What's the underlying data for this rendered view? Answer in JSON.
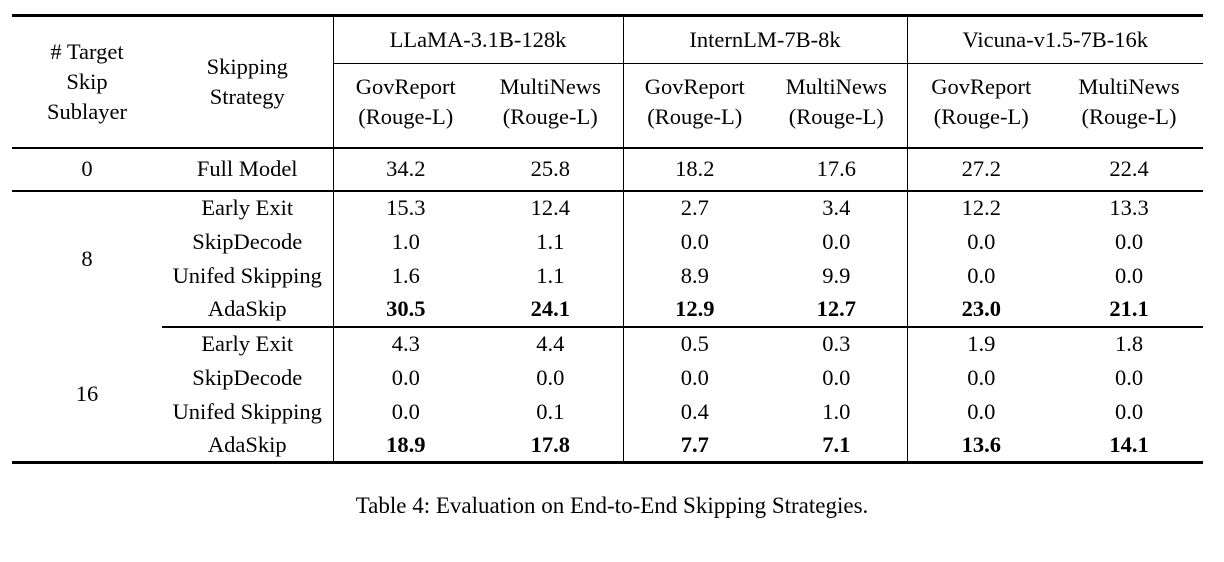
{
  "colors": {
    "text": "#000000",
    "background": "#ffffff",
    "rule": "#000000"
  },
  "table": {
    "header": {
      "col1": "# Target\nSkip\nSublayer",
      "col2": "Skipping\nStrategy",
      "groups": [
        {
          "model": "LLaMA-3.1B-128k",
          "subcols": [
            "GovReport\n(Rouge-L)",
            "MultiNews\n(Rouge-L)"
          ]
        },
        {
          "model": "InternLM-7B-8k",
          "subcols": [
            "GovReport\n(Rouge-L)",
            "MultiNews\n(Rouge-L)"
          ]
        },
        {
          "model": "Vicuna-v1.5-7B-16k",
          "subcols": [
            "GovReport\n(Rouge-L)",
            "MultiNews\n(Rouge-L)"
          ]
        }
      ]
    },
    "sections": [
      {
        "skip": "0",
        "rows": [
          {
            "strategy": "Full Model",
            "values": [
              "34.2",
              "25.8",
              "18.2",
              "17.6",
              "27.2",
              "22.4"
            ]
          }
        ]
      },
      {
        "skip": "8",
        "rows": [
          {
            "strategy": "Early Exit",
            "values": [
              "15.3",
              "12.4",
              "2.7",
              "3.4",
              "12.2",
              "13.3"
            ]
          },
          {
            "strategy": "SkipDecode",
            "values": [
              "1.0",
              "1.1",
              "0.0",
              "0.0",
              "0.0",
              "0.0"
            ]
          },
          {
            "strategy": "Unifed Skipping",
            "values": [
              "1.6",
              "1.1",
              "8.9",
              "9.9",
              "0.0",
              "0.0"
            ]
          },
          {
            "strategy": "AdaSkip",
            "values": [
              "30.5",
              "24.1",
              "12.9",
              "12.7",
              "23.0",
              "21.1"
            ]
          }
        ]
      },
      {
        "skip": "16",
        "rows": [
          {
            "strategy": "Early Exit",
            "values": [
              "4.3",
              "4.4",
              "0.5",
              "0.3",
              "1.9",
              "1.8"
            ]
          },
          {
            "strategy": "SkipDecode",
            "values": [
              "0.0",
              "0.0",
              "0.0",
              "0.0",
              "0.0",
              "0.0"
            ]
          },
          {
            "strategy": "Unifed Skipping",
            "values": [
              "0.0",
              "0.1",
              "0.4",
              "1.0",
              "0.0",
              "0.0"
            ]
          },
          {
            "strategy": "AdaSkip",
            "values": [
              "18.9",
              "17.8",
              "7.7",
              "7.1",
              "13.6",
              "14.1"
            ]
          }
        ]
      }
    ],
    "caption": "Table 4: Evaluation on End-to-End Skipping Strategies."
  }
}
